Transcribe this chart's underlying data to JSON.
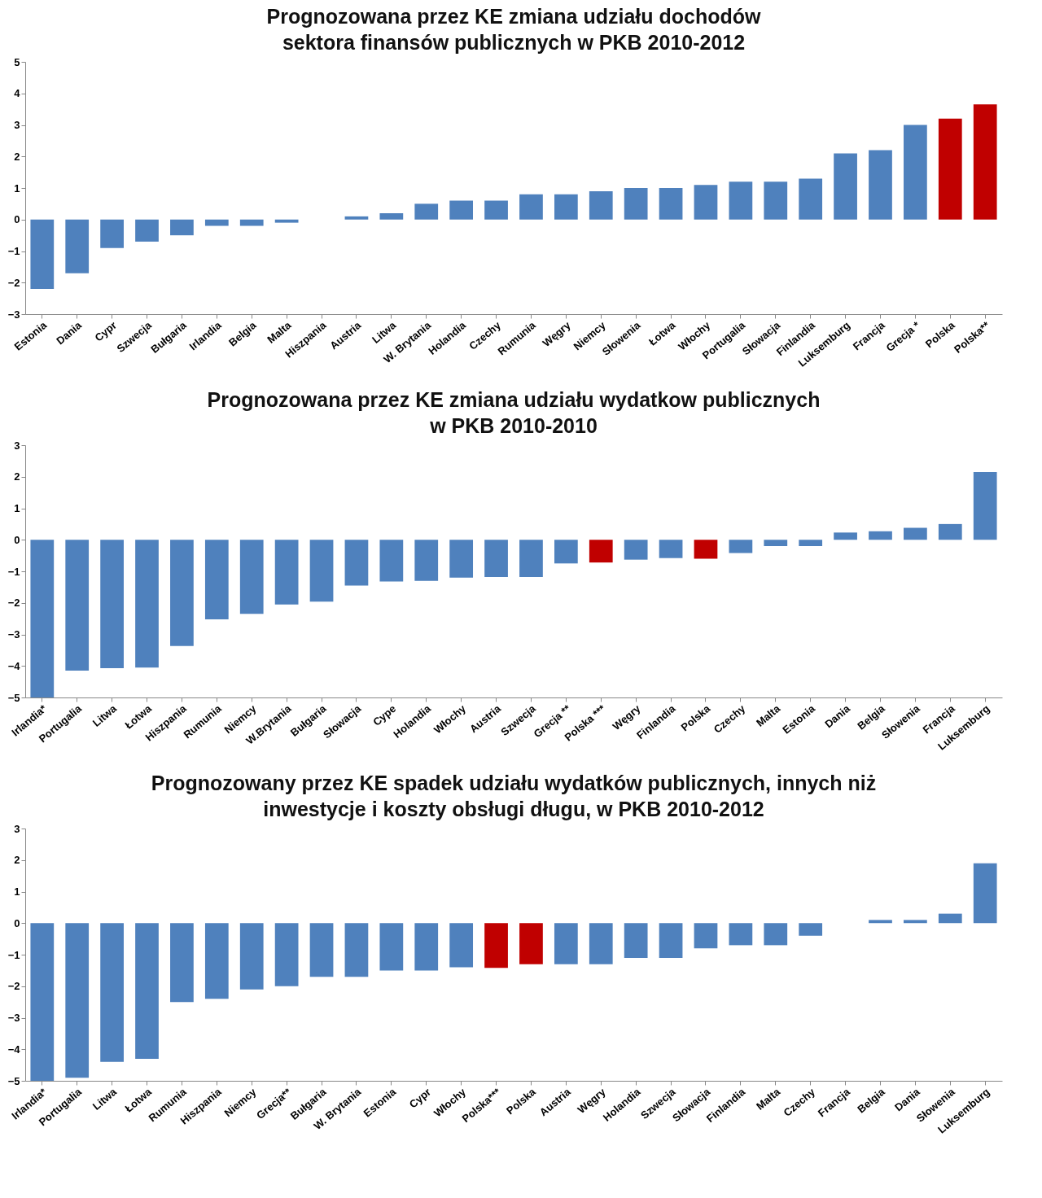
{
  "chart_data": [
    {
      "type": "bar",
      "title": "Prognozowana przez KE zmiana udziału dochodów\nsektora finansów publicznych w PKB 2010-2012",
      "categories": [
        "Estonia",
        "Dania",
        "Cypr",
        "Szwecja",
        "Bułgaria",
        "Irlandia",
        "Belgia",
        "Malta",
        "Hiszpania",
        "Austria",
        "Litwa",
        "W. Brytania",
        "Holandia",
        "Czechy",
        "Rumunia",
        "Węgry",
        "Niemcy",
        "Słowenia",
        "Łotwa",
        "Włochy",
        "Portugalia",
        "Słowacja",
        "Finlandia",
        "Luksemburg",
        "Francja",
        "Grecja *",
        "Polska",
        "Polska**"
      ],
      "values": [
        -2.2,
        -1.7,
        -0.9,
        -0.7,
        -0.5,
        -0.2,
        -0.2,
        -0.1,
        0,
        0.1,
        0.2,
        0.5,
        0.6,
        0.6,
        0.8,
        0.8,
        0.9,
        1.0,
        1.0,
        1.1,
        1.2,
        1.2,
        1.3,
        2.1,
        2.2,
        3.0,
        3.2,
        3.65
      ],
      "colors": [
        "#4f81bd",
        "#4f81bd",
        "#4f81bd",
        "#4f81bd",
        "#4f81bd",
        "#4f81bd",
        "#4f81bd",
        "#4f81bd",
        "#4f81bd",
        "#4f81bd",
        "#4f81bd",
        "#4f81bd",
        "#4f81bd",
        "#4f81bd",
        "#4f81bd",
        "#4f81bd",
        "#4f81bd",
        "#4f81bd",
        "#4f81bd",
        "#4f81bd",
        "#4f81bd",
        "#4f81bd",
        "#4f81bd",
        "#4f81bd",
        "#4f81bd",
        "#4f81bd",
        "#c00000",
        "#c00000"
      ],
      "ylim": [
        -3,
        5
      ],
      "yticks": [
        -3,
        -2,
        -1,
        0,
        1,
        2,
        3,
        4,
        5
      ]
    },
    {
      "type": "bar",
      "title": "Prognozowana przez KE zmiana udziału wydatkow publicznych\nw PKB 2010-2010",
      "categories": [
        "Irlandia*",
        "Portugalia",
        "Litwa",
        "Łotwa",
        "Hiszpania",
        "Rumunia",
        "Niemcy",
        "W.Brytania",
        "Bułgaria",
        "Słowacja",
        "Cype",
        "Holandia",
        "Włochy",
        "Austria",
        "Szwecja",
        "Grecja **",
        "Polska ***",
        "Węgry",
        "Finlandia",
        "Polska",
        "Czechy",
        "Malta",
        "Estonia",
        "Dania",
        "Belgia",
        "Słowenia",
        "Francja",
        "Luksemburg"
      ],
      "values": [
        -5.0,
        -4.15,
        -4.07,
        -4.05,
        -3.37,
        -2.52,
        -2.35,
        -2.05,
        -1.96,
        -1.45,
        -1.32,
        -1.3,
        -1.2,
        -1.18,
        -1.18,
        -0.75,
        -0.72,
        -0.63,
        -0.58,
        -0.6,
        -0.42,
        -0.2,
        -0.2,
        0.23,
        0.27,
        0.38,
        0.5,
        2.15
      ],
      "colors": [
        "#4f81bd",
        "#4f81bd",
        "#4f81bd",
        "#4f81bd",
        "#4f81bd",
        "#4f81bd",
        "#4f81bd",
        "#4f81bd",
        "#4f81bd",
        "#4f81bd",
        "#4f81bd",
        "#4f81bd",
        "#4f81bd",
        "#4f81bd",
        "#4f81bd",
        "#4f81bd",
        "#c00000",
        "#4f81bd",
        "#4f81bd",
        "#c00000",
        "#4f81bd",
        "#4f81bd",
        "#4f81bd",
        "#4f81bd",
        "#4f81bd",
        "#4f81bd",
        "#4f81bd",
        "#4f81bd"
      ],
      "ylim": [
        -5,
        3
      ],
      "yticks": [
        -5,
        -4,
        -3,
        -2,
        -1,
        0,
        1,
        2,
        3
      ]
    },
    {
      "type": "bar",
      "title": "Prognozowany przez KE spadek udziału wydatków publicznych, innych niż\ninwestycje i koszty obsługi długu, w PKB 2010-2012",
      "categories": [
        "Irlandia*",
        "Portugalia",
        "Litwa",
        "Łotwa",
        "Rumunia",
        "Hiszpania",
        "Niemcy",
        "Grecja**",
        "Bułgaria",
        "W. Brytania",
        "Estonia",
        "Cypr",
        "Włochy",
        "Polska***",
        "Polska",
        "Austria",
        "Węgry",
        "Holandia",
        "Szwecja",
        "Słowacja",
        "Finlandia",
        "Malta",
        "Czechy",
        "Francja",
        "Belgia",
        "Dania",
        "Słowenia",
        "Luksemburg"
      ],
      "values": [
        -5.0,
        -4.9,
        -4.4,
        -4.3,
        -2.5,
        -2.4,
        -2.1,
        -2.0,
        -1.7,
        -1.7,
        -1.5,
        -1.5,
        -1.4,
        -1.42,
        -1.3,
        -1.3,
        -1.3,
        -1.1,
        -1.1,
        -0.8,
        -0.7,
        -0.7,
        -0.4,
        0,
        0.1,
        0.1,
        0.3,
        1.9
      ],
      "colors": [
        "#4f81bd",
        "#4f81bd",
        "#4f81bd",
        "#4f81bd",
        "#4f81bd",
        "#4f81bd",
        "#4f81bd",
        "#4f81bd",
        "#4f81bd",
        "#4f81bd",
        "#4f81bd",
        "#4f81bd",
        "#4f81bd",
        "#c00000",
        "#c00000",
        "#4f81bd",
        "#4f81bd",
        "#4f81bd",
        "#4f81bd",
        "#4f81bd",
        "#4f81bd",
        "#4f81bd",
        "#4f81bd",
        "#4f81bd",
        "#4f81bd",
        "#4f81bd",
        "#4f81bd",
        "#4f81bd"
      ],
      "ylim": [
        -5,
        3
      ],
      "yticks": [
        -5,
        -4,
        -3,
        -2,
        -1,
        0,
        1,
        2,
        3
      ]
    }
  ]
}
